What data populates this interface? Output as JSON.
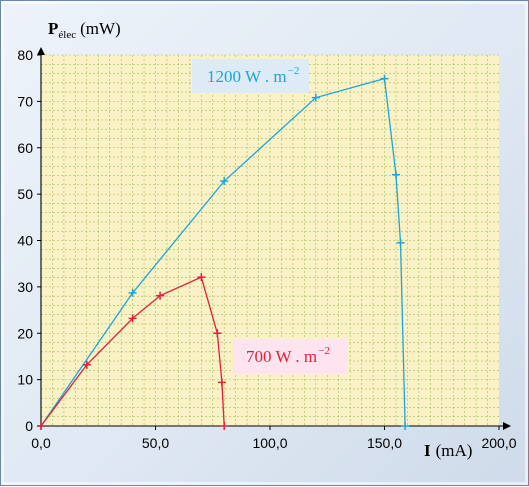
{
  "chart_data": {
    "type": "line",
    "ylabel": {
      "main": "P",
      "sub": "élec",
      "unit": "(mW)"
    },
    "xlabel": {
      "main": "I",
      "unit": "(mA)"
    },
    "xlim": [
      0,
      200
    ],
    "ylim": [
      0,
      80
    ],
    "x_ticks": [
      {
        "value": 0,
        "label": "0,0"
      },
      {
        "value": 50,
        "label": "50,0"
      },
      {
        "value": 100,
        "label": "100,0"
      },
      {
        "value": 150,
        "label": "150,0"
      },
      {
        "value": 200,
        "label": "200,0"
      }
    ],
    "y_ticks": [
      {
        "value": 0,
        "label": "0"
      },
      {
        "value": 10,
        "label": "10"
      },
      {
        "value": 20,
        "label": "20"
      },
      {
        "value": 30,
        "label": "30"
      },
      {
        "value": 40,
        "label": "40"
      },
      {
        "value": 50,
        "label": "50"
      },
      {
        "value": 60,
        "label": "60"
      },
      {
        "value": 70,
        "label": "70"
      },
      {
        "value": 80,
        "label": "80"
      }
    ],
    "grid": true,
    "series": [
      {
        "name": "1200 W . m",
        "name_exp": "−2",
        "color": "#1aa6d8",
        "label_bg": "#dcebf5",
        "x": [
          0,
          40,
          80,
          120,
          150,
          155,
          157,
          159
        ],
        "y": [
          0,
          28.7,
          52.8,
          70.8,
          74.9,
          54.2,
          39.5,
          0
        ]
      },
      {
        "name": "700 W . m",
        "name_exp": "−2",
        "color": "#e0203a",
        "label_bg": "#fde4ee",
        "x": [
          0,
          20,
          40,
          52,
          70,
          77,
          79,
          80
        ],
        "y": [
          0,
          13.2,
          23.2,
          28.1,
          32.1,
          20,
          9.4,
          0
        ]
      }
    ]
  }
}
